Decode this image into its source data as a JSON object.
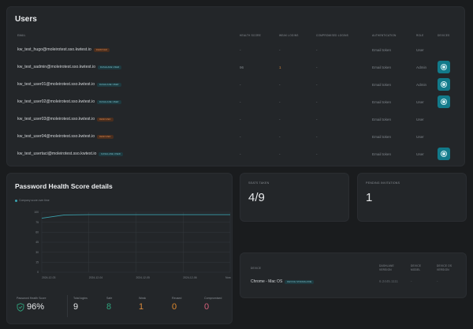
{
  "users": {
    "title": "Users",
    "columns": [
      "Email",
      "Health score",
      "Weak logins",
      "Compromised logins",
      "Authentication",
      "Role",
      "Devices"
    ],
    "rows": [
      {
        "email": "kw_test_hugo@moleirotest.sso.kwtest.io",
        "badge": "Removed",
        "badge_color": "orange",
        "health": "-",
        "weak": "-",
        "compromised": "-",
        "auth": "Email token",
        "role": "User",
        "has_device": false
      },
      {
        "email": "kw_test_sadmin@moleirotest.sso.kwtest.io",
        "badge": "Dashlane user",
        "badge_color": "teal",
        "health": "96",
        "weak": "1",
        "compromised": "-",
        "auth": "Email token",
        "role": "Admin",
        "has_device": true
      },
      {
        "email": "kw_test_user01@moleirotest.sso.kwtest.io",
        "badge": "Dashlane user",
        "badge_color": "teal",
        "health": "-",
        "weak": "-",
        "compromised": "-",
        "auth": "Email token",
        "role": "Admin",
        "has_device": true
      },
      {
        "email": "kw_test_user02@moleirotest.sso.kwtest.io",
        "badge": "Dashlane user",
        "badge_color": "teal",
        "health": "-",
        "weak": "-",
        "compromised": "-",
        "auth": "Email token",
        "role": "User",
        "has_device": true
      },
      {
        "email": "kw_test_user03@moleirotest.sso.kwtest.io",
        "badge": "Removed",
        "badge_color": "orange",
        "health": "-",
        "weak": "-",
        "compromised": "-",
        "auth": "Email token",
        "role": "User",
        "has_device": false
      },
      {
        "email": "kw_test_user04@moleirotest.sso.kwtest.io",
        "badge": "Removed",
        "badge_color": "orange",
        "health": "-",
        "weak": "-",
        "compromised": "-",
        "auth": "Email token",
        "role": "User",
        "has_device": false
      },
      {
        "email": "kw_test_usertaci@moleirotest.sso.kwtest.io",
        "badge": "Dashlane user",
        "badge_color": "teal",
        "health": "-",
        "weak": "-",
        "compromised": "-",
        "auth": "Email token",
        "role": "User",
        "has_device": true
      }
    ]
  },
  "password_health": {
    "title": "Password Health Score details",
    "legend": "Company score over time",
    "stats": {
      "score_label": "Password Health Score",
      "score_value": "96%",
      "total_label": "Total logins",
      "total_value": "9",
      "safe_label": "Safe",
      "safe_value": "8",
      "weak_label": "Weak",
      "weak_value": "1",
      "reused_label": "Reused",
      "reused_value": "0",
      "compromised_label": "Compromised",
      "compromised_value": "0"
    }
  },
  "chart_data": {
    "type": "line",
    "title": "",
    "series": [
      {
        "name": "Company score over time",
        "x": [
          "2024-12-03",
          "2024-12-04",
          "2024-12-05",
          "2024-12-06",
          "Now"
        ],
        "values": [
          90,
          96,
          96,
          96,
          96
        ]
      }
    ],
    "categories": [
      "2024-12-03",
      "2024-12-04",
      "2024-12-05",
      "2024-12-06",
      "Now"
    ],
    "y_ticks": [
      "100",
      "75",
      "60",
      "45",
      "30",
      "15",
      "0"
    ],
    "ylim": [
      0,
      100
    ],
    "grid": true
  },
  "kpis": {
    "seats_label": "Seats taken",
    "seats_value": "4/9",
    "invites_label": "Pending invitations",
    "invites_value": "1"
  },
  "devices": {
    "columns": [
      "Device",
      "Dashlane version",
      "Device model",
      "Device OS version"
    ],
    "rows": [
      {
        "name": "Chrome - Mac OS",
        "badge": "Device standalone",
        "version": "6.2445.1111",
        "model": "-",
        "os": "-"
      }
    ]
  },
  "colors": {
    "accent": "#127a8a",
    "safe": "#2fa37d",
    "weak": "#d88a3c",
    "reused": "#e08a2e",
    "compromised": "#d4607a"
  }
}
